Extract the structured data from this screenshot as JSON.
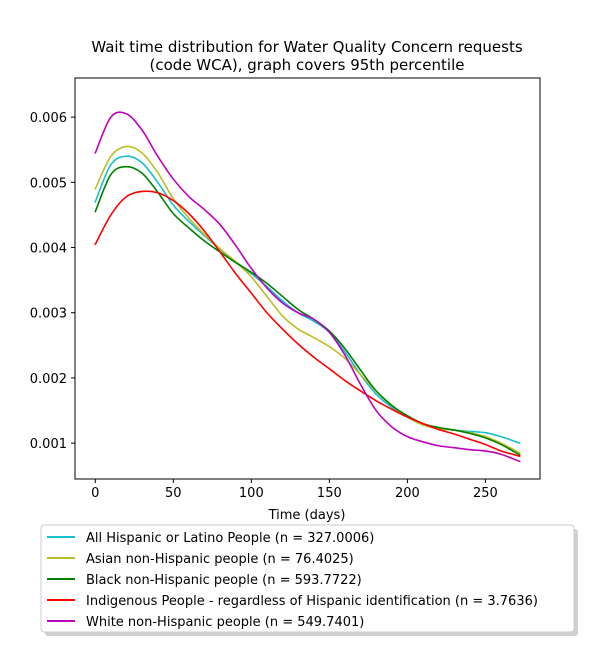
{
  "chart_data": {
    "type": "line",
    "title_line1": "Wait time distribution  for Water Quality Concern  requests",
    "title_line2": "(code WCA), graph covers 95th percentile",
    "xlabel": "Time (days)",
    "ylabel": "",
    "xlim": [
      -13,
      285
    ],
    "ylim": [
      0.00045,
      0.0066
    ],
    "x_ticks": [
      0,
      50,
      100,
      150,
      200,
      250
    ],
    "y_ticks": [
      0.001,
      0.002,
      0.003,
      0.004,
      0.005,
      0.006
    ],
    "x_tick_labels": [
      "0",
      "50",
      "100",
      "150",
      "200",
      "250"
    ],
    "y_tick_labels": [
      "0.001",
      "0.002",
      "0.003",
      "0.004",
      "0.005",
      "0.006"
    ],
    "grid": false,
    "legend_placement": "below",
    "series": [
      {
        "name": "All Hispanic or Latino People (n = 327.0006)",
        "color": "#17becf",
        "x": [
          0,
          10,
          20,
          30,
          40,
          50,
          60,
          70,
          80,
          90,
          100,
          110,
          120,
          130,
          140,
          150,
          160,
          170,
          180,
          190,
          200,
          210,
          220,
          230,
          240,
          250,
          260,
          272
        ],
        "y": [
          0.0047,
          0.00527,
          0.0054,
          0.0053,
          0.005,
          0.00465,
          0.0044,
          0.00418,
          0.00397,
          0.00378,
          0.0036,
          0.0034,
          0.00318,
          0.003,
          0.00287,
          0.0027,
          0.0024,
          0.00205,
          0.00175,
          0.00155,
          0.0014,
          0.00128,
          0.00122,
          0.0012,
          0.00118,
          0.00116,
          0.0011,
          0.001
        ]
      },
      {
        "name": "Asian non-Hispanic people (n = 76.4025)",
        "color": "#bcbd22",
        "x": [
          0,
          10,
          20,
          30,
          40,
          50,
          60,
          70,
          80,
          90,
          100,
          110,
          120,
          130,
          140,
          150,
          160,
          170,
          180,
          190,
          200,
          210,
          220,
          230,
          240,
          250,
          260,
          272
        ],
        "y": [
          0.0049,
          0.0054,
          0.00555,
          0.00545,
          0.00515,
          0.00475,
          0.00445,
          0.0042,
          0.00398,
          0.00378,
          0.00355,
          0.00325,
          0.00295,
          0.00275,
          0.00262,
          0.00248,
          0.0023,
          0.00205,
          0.0018,
          0.00158,
          0.0014,
          0.00128,
          0.00122,
          0.0012,
          0.00116,
          0.0011,
          0.001,
          0.00085
        ]
      },
      {
        "name": "Black non-Hispanic people (n = 593.7722)",
        "color": "#008000",
        "x": [
          0,
          10,
          20,
          30,
          40,
          50,
          60,
          70,
          80,
          90,
          100,
          110,
          120,
          130,
          140,
          150,
          160,
          170,
          180,
          190,
          200,
          210,
          220,
          230,
          240,
          250,
          260,
          272
        ],
        "y": [
          0.00455,
          0.00512,
          0.00524,
          0.00514,
          0.00485,
          0.00452,
          0.0043,
          0.0041,
          0.00393,
          0.00377,
          0.00362,
          0.00345,
          0.00325,
          0.00305,
          0.0029,
          0.00272,
          0.00245,
          0.00212,
          0.0018,
          0.00158,
          0.00142,
          0.0013,
          0.00124,
          0.0012,
          0.00115,
          0.00108,
          0.00098,
          0.00082
        ]
      },
      {
        "name": "Indigenous People - regardless of Hispanic identification (n = 3.7636)",
        "color": "#ff0000",
        "x": [
          0,
          10,
          20,
          30,
          40,
          50,
          60,
          70,
          80,
          90,
          100,
          110,
          120,
          130,
          140,
          150,
          160,
          170,
          180,
          190,
          200,
          210,
          220,
          230,
          240,
          250,
          260,
          272
        ],
        "y": [
          0.00405,
          0.0045,
          0.00478,
          0.00486,
          0.00484,
          0.00472,
          0.00452,
          0.00425,
          0.00393,
          0.0036,
          0.0033,
          0.003,
          0.00275,
          0.00252,
          0.00232,
          0.00214,
          0.00196,
          0.0018,
          0.00165,
          0.00152,
          0.0014,
          0.0013,
          0.00121,
          0.00114,
          0.00106,
          0.00098,
          0.00088,
          0.0008
        ]
      },
      {
        "name": "White non-Hispanic people (n = 549.7401)",
        "color": "#bf00bf",
        "x": [
          0,
          10,
          20,
          30,
          40,
          50,
          60,
          70,
          80,
          90,
          100,
          110,
          120,
          130,
          140,
          150,
          160,
          170,
          180,
          190,
          200,
          210,
          220,
          230,
          240,
          250,
          260,
          272
        ],
        "y": [
          0.00545,
          0.006,
          0.00605,
          0.0058,
          0.0054,
          0.00505,
          0.00478,
          0.00458,
          0.00435,
          0.00403,
          0.00368,
          0.00338,
          0.00315,
          0.003,
          0.0029,
          0.0027,
          0.00235,
          0.0019,
          0.0015,
          0.00125,
          0.0011,
          0.00102,
          0.00096,
          0.00093,
          0.0009,
          0.00088,
          0.00083,
          0.00072
        ]
      }
    ]
  }
}
